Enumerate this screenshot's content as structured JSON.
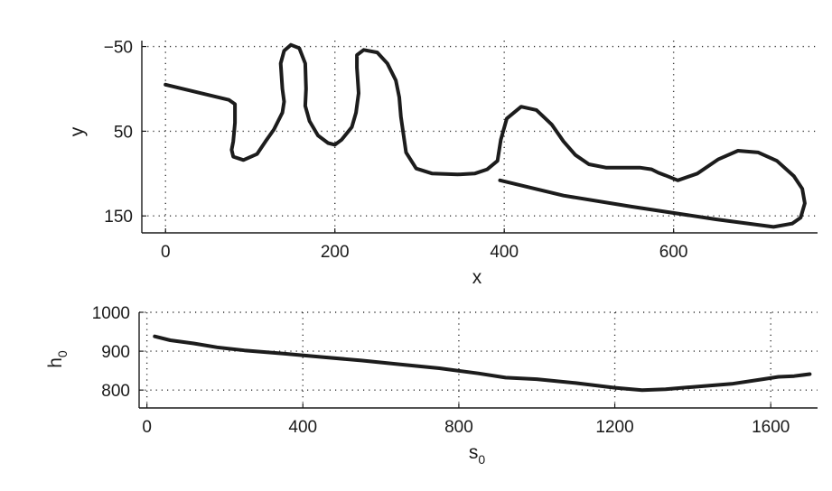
{
  "chart_data": [
    {
      "type": "line",
      "title": "",
      "xlabel": "x",
      "ylabel": "y",
      "xlim": [
        -28,
        770
      ],
      "ylim": [
        -57,
        170
      ],
      "y_reversed": true,
      "grid": true,
      "x_ticks": [
        0,
        200,
        400,
        600
      ],
      "y_ticks": [
        -50,
        50,
        150
      ],
      "x_tick_labels": [
        "0",
        "200",
        "400",
        "600"
      ],
      "y_tick_labels": [
        "−50",
        "50",
        "150"
      ],
      "series": [
        {
          "x": [
            0,
            75,
            82,
            82,
            80,
            78,
            80,
            92,
            108,
            118,
            128,
            138,
            140,
            138,
            136,
            140,
            148,
            158,
            165,
            166,
            165,
            170,
            180,
            192,
            200,
            208,
            220,
            225,
            228,
            226,
            226,
            234,
            250,
            262,
            272,
            276,
            278,
            284,
            296,
            315,
            345,
            365,
            380,
            392,
            396,
            403,
            420,
            438,
            456,
            470,
            484,
            500,
            520,
            545,
            560,
            574,
            582,
            590,
            605,
            628,
            653,
            676,
            700,
            722,
            742,
            752,
            755,
            750,
            740,
            718,
            650,
            550,
            470,
            395
          ],
          "y": [
            -5,
            13,
            18,
            40,
            62,
            72,
            80,
            84,
            77,
            62,
            48,
            28,
            15,
            0,
            -30,
            -45,
            -52,
            -48,
            -30,
            0,
            20,
            38,
            55,
            64,
            66,
            60,
            45,
            28,
            5,
            -25,
            -40,
            -46,
            -43,
            -30,
            -10,
            10,
            33,
            75,
            94,
            100,
            101,
            100,
            95,
            85,
            60,
            35,
            21,
            25,
            42,
            62,
            78,
            89,
            93,
            93,
            93,
            95,
            99,
            102,
            108,
            100,
            83,
            73,
            75,
            85,
            103,
            118,
            135,
            152,
            159,
            163,
            154,
            139,
            126,
            108
          ]
        }
      ]
    },
    {
      "type": "line",
      "title": "",
      "xlabel": "s0",
      "ylabel": "h0",
      "xlim": [
        -20,
        1720
      ],
      "ylim": [
        754,
        1000
      ],
      "grid": true,
      "x_ticks": [
        0,
        400,
        800,
        1200,
        1600
      ],
      "y_ticks": [
        800,
        900,
        1000
      ],
      "x_tick_labels": [
        "0",
        "400",
        "800",
        "1200",
        "1600"
      ],
      "y_tick_labels": [
        "800",
        "900",
        "1000"
      ],
      "series": [
        {
          "x": [
            20,
            60,
            120,
            180,
            250,
            350,
            450,
            550,
            650,
            750,
            850,
            920,
            1000,
            1100,
            1200,
            1270,
            1330,
            1400,
            1500,
            1580,
            1620,
            1660,
            1700
          ],
          "y": [
            938,
            928,
            920,
            910,
            902,
            894,
            885,
            876,
            866,
            856,
            843,
            832,
            828,
            818,
            806,
            800,
            802,
            808,
            816,
            828,
            834,
            836,
            841
          ]
        }
      ]
    }
  ]
}
